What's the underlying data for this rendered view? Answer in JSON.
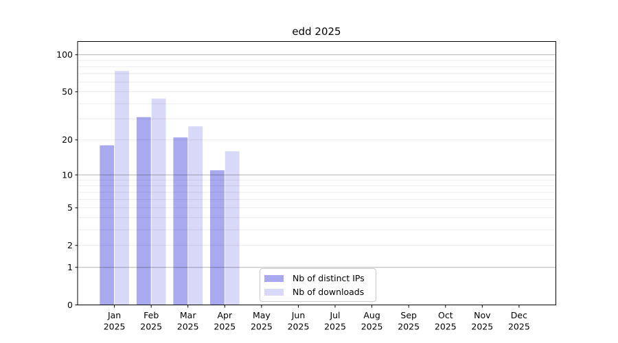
{
  "chart_data": {
    "type": "bar",
    "title": "edd 2025",
    "categories": [
      "Jan",
      "Feb",
      "Mar",
      "Apr",
      "May",
      "Jun",
      "Jul",
      "Aug",
      "Sep",
      "Oct",
      "Nov",
      "Dec"
    ],
    "category_year_line": "2025",
    "series": [
      {
        "name": "Nb of distinct IPs",
        "color": "#a9a9f0",
        "values": [
          18,
          31,
          21,
          11,
          0,
          0,
          0,
          0,
          0,
          0,
          0,
          0
        ]
      },
      {
        "name": "Nb of downloads",
        "color": "#d8d8f8",
        "values": [
          74,
          44,
          26,
          16,
          0,
          0,
          0,
          0,
          0,
          0,
          0,
          0
        ]
      }
    ],
    "xlabel": "",
    "ylabel": "",
    "y_scale": "log1p",
    "ylim": [
      0,
      128
    ],
    "y_ticks": [
      0,
      1,
      2,
      5,
      10,
      20,
      50,
      100
    ],
    "y_major_gridlines": [
      1,
      10,
      100
    ],
    "y_minor_gridlines": [
      2,
      3,
      4,
      5,
      6,
      7,
      8,
      9,
      20,
      30,
      40,
      50,
      60,
      70,
      80,
      90
    ],
    "grid": true,
    "legend_position": "inside-bottom-center",
    "colors": {
      "axis": "#000000",
      "major_grid": "#b3b3b3",
      "minor_grid": "#ebebeb",
      "background": "#ffffff"
    }
  }
}
